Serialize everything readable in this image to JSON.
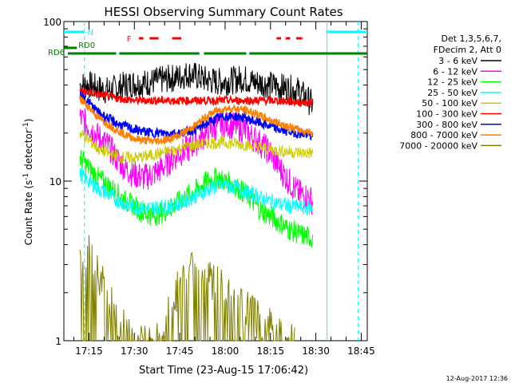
{
  "chart_data": {
    "type": "line",
    "title": "HESSI Observing Summary Count Rates",
    "xlabel": "Start Time (23-Aug-15 17:06:42)",
    "ylabel_main": "Count Rate (s",
    "ylabel_sup1": "-1",
    "ylabel_mid": " detector",
    "ylabel_sup2": "-1",
    "ylabel_end": ")",
    "ylim": [
      1,
      100
    ],
    "yscale": "log",
    "xlim_minutes": [
      1026.7,
      1127.0
    ],
    "x_ticks": [
      {
        "label": "17:15",
        "minutes": 1035
      },
      {
        "label": "17:30",
        "minutes": 1050
      },
      {
        "label": "17:45",
        "minutes": 1065
      },
      {
        "label": "18:00",
        "minutes": 1080
      },
      {
        "label": "18:15",
        "minutes": 1095
      },
      {
        "label": "18:30",
        "minutes": 1110
      },
      {
        "label": "18:45",
        "minutes": 1125
      }
    ],
    "y_ticks": [
      {
        "label": "1",
        "value": 1
      },
      {
        "label": "10",
        "value": 10
      },
      {
        "label": "100",
        "value": 100
      }
    ],
    "legend_header": [
      "Det 1,3,5,6,7,",
      "FDecim 2, Att 0"
    ],
    "legend_position": "right",
    "series": [
      {
        "name": "3 - 6 keV",
        "color": "#000000",
        "x": [
          1032,
          1035,
          1038,
          1041,
          1044,
          1047,
          1050,
          1053,
          1056,
          1059,
          1062,
          1065,
          1068,
          1071,
          1074,
          1077,
          1080,
          1083,
          1086,
          1089,
          1092,
          1095,
          1098,
          1101,
          1104,
          1107,
          1109
        ],
        "y": [
          40,
          40,
          38,
          37,
          38,
          40,
          41,
          41,
          42,
          43,
          44,
          45,
          47,
          45,
          43,
          42,
          42,
          43,
          44,
          42,
          41,
          40,
          39,
          38,
          37,
          33,
          30
        ]
      },
      {
        "name": "6 - 12 keV",
        "color": "#ff00ff",
        "x": [
          1032,
          1035,
          1038,
          1041,
          1044,
          1047,
          1050,
          1053,
          1056,
          1059,
          1062,
          1065,
          1068,
          1071,
          1074,
          1077,
          1080,
          1083,
          1086,
          1089,
          1092,
          1095,
          1098,
          1101,
          1104,
          1107,
          1109
        ],
        "y": [
          25,
          22,
          19,
          17,
          14,
          12,
          11,
          10.5,
          11,
          12,
          13.5,
          15,
          16,
          18,
          20,
          22,
          23,
          22,
          21,
          19,
          17,
          15,
          12,
          10,
          8.5,
          8,
          7.5
        ]
      },
      {
        "name": "12 - 25 keV",
        "color": "#00ff00",
        "x": [
          1032,
          1035,
          1038,
          1041,
          1044,
          1047,
          1050,
          1053,
          1056,
          1059,
          1062,
          1065,
          1068,
          1071,
          1074,
          1077,
          1080,
          1083,
          1086,
          1089,
          1092,
          1095,
          1098,
          1101,
          1104,
          1107,
          1109
        ],
        "y": [
          14,
          12,
          10.5,
          9.5,
          8.5,
          7.5,
          7,
          6.3,
          6.1,
          6.3,
          6.8,
          7.5,
          8.2,
          9,
          10,
          10.5,
          10,
          9.5,
          8.5,
          7.5,
          6.5,
          6,
          5.5,
          5,
          4.7,
          4.5,
          4.4
        ]
      },
      {
        "name": "25 - 50 keV",
        "color": "#00ffff",
        "x": [
          1032,
          1035,
          1038,
          1041,
          1044,
          1047,
          1050,
          1053,
          1056,
          1059,
          1062,
          1065,
          1068,
          1071,
          1074,
          1077,
          1080,
          1083,
          1086,
          1089,
          1092,
          1095,
          1098,
          1101,
          1104,
          1107,
          1109
        ],
        "y": [
          11,
          10,
          9,
          8.3,
          7.7,
          7.2,
          6.9,
          6.8,
          6.8,
          6.9,
          7,
          7.3,
          7.7,
          8.2,
          8.8,
          9.3,
          9.5,
          9.2,
          8.8,
          8.3,
          7.8,
          7.5,
          7.2,
          7,
          6.9,
          6.8,
          6.7
        ]
      },
      {
        "name": "50 - 100 keV",
        "color": "#cccc00",
        "x": [
          1032,
          1035,
          1038,
          1041,
          1044,
          1047,
          1050,
          1053,
          1056,
          1059,
          1062,
          1065,
          1068,
          1071,
          1074,
          1077,
          1080,
          1083,
          1086,
          1089,
          1092,
          1095,
          1098,
          1101,
          1104,
          1107,
          1109
        ],
        "y": [
          20,
          18,
          16,
          15,
          14.3,
          14,
          14,
          14.2,
          14.6,
          15,
          15.5,
          16,
          16.5,
          17,
          17.3,
          17.4,
          17.4,
          17.2,
          17,
          16.6,
          16.2,
          15.8,
          15.5,
          15.3,
          15.1,
          15,
          15
        ]
      },
      {
        "name": "100 - 300 keV",
        "color": "#ff0000",
        "x": [
          1032,
          1035,
          1038,
          1041,
          1044,
          1047,
          1050,
          1053,
          1056,
          1059,
          1062,
          1065,
          1068,
          1071,
          1074,
          1077,
          1080,
          1083,
          1086,
          1089,
          1092,
          1095,
          1098,
          1101,
          1104,
          1107,
          1109
        ],
        "y": [
          37,
          36,
          35,
          34,
          33,
          32.5,
          32,
          32,
          32,
          32,
          32,
          32,
          32,
          32,
          32,
          32,
          32,
          32,
          32,
          32,
          32,
          32,
          31.8,
          31.5,
          31.2,
          31,
          31
        ]
      },
      {
        "name": "300 - 800 keV",
        "color": "#0000ff",
        "x": [
          1032,
          1035,
          1038,
          1041,
          1044,
          1047,
          1050,
          1053,
          1056,
          1059,
          1062,
          1065,
          1068,
          1071,
          1074,
          1077,
          1080,
          1083,
          1086,
          1089,
          1092,
          1095,
          1098,
          1101,
          1104,
          1107,
          1109
        ],
        "y": [
          35,
          31,
          27,
          25,
          23,
          22,
          21,
          20.5,
          20,
          20,
          20,
          20,
          20.5,
          21.5,
          23,
          24.5,
          25.5,
          25.5,
          25,
          24,
          23,
          22,
          21,
          20.5,
          20,
          19.5,
          19
        ]
      },
      {
        "name": "800 - 7000 keV",
        "color": "#ff8000",
        "x": [
          1032,
          1035,
          1038,
          1041,
          1044,
          1047,
          1050,
          1053,
          1056,
          1059,
          1062,
          1065,
          1068,
          1071,
          1074,
          1077,
          1080,
          1083,
          1086,
          1089,
          1092,
          1095,
          1098,
          1101,
          1104,
          1107,
          1109
        ],
        "y": [
          33,
          29,
          25,
          23,
          21,
          19.5,
          18.5,
          18,
          17.8,
          18,
          18.5,
          19.5,
          21,
          23,
          25.5,
          27.5,
          28.5,
          28.5,
          28,
          27,
          25.5,
          24,
          23,
          22,
          21,
          20.5,
          20
        ]
      },
      {
        "name": "7000 - 20000 keV",
        "color": "#808000",
        "x": [
          1032,
          1033,
          1035,
          1036,
          1038,
          1040,
          1042,
          1044,
          1045,
          1047,
          1050,
          1052,
          1060,
          1061,
          1063,
          1065,
          1067,
          1069,
          1071,
          1073,
          1075,
          1077,
          1079,
          1081,
          1083,
          1085,
          1087,
          1089,
          1091,
          1093,
          1095,
          1097,
          1099,
          1101,
          1103
        ],
        "y": [
          3.5,
          3.0,
          3.8,
          3.2,
          2.7,
          2.2,
          1.8,
          1.5,
          1.3,
          1.2,
          1.1,
          1.0,
          1.0,
          1.5,
          1.9,
          2.2,
          2.5,
          2.8,
          3.0,
          2.8,
          2.6,
          2.4,
          2.2,
          2.0,
          1.8,
          1.7,
          1.6,
          1.5,
          1.4,
          1.3,
          1.3,
          1.2,
          1.1,
          1.0,
          1.0
        ]
      }
    ],
    "top_panel": {
      "labels": [
        {
          "text": "N",
          "color": "#00ffff"
        },
        {
          "text": "F",
          "color": "#ff0000"
        },
        {
          "text": "RD0",
          "color": "#008000"
        },
        {
          "text": "RD6",
          "color": "#008000"
        }
      ],
      "night_intervals_minutes": [
        [
          1026.7,
          1033.5
        ],
        [
          1113.7,
          1127.0
        ]
      ],
      "flare_intervals_minutes": [
        [
          1051.5,
          1053.0
        ],
        [
          1055.0,
          1058.0
        ],
        [
          1062.5,
          1065.5
        ],
        [
          1097.0,
          1098.5
        ],
        [
          1100.0,
          1101.5
        ],
        [
          1103.5,
          1105.5
        ]
      ],
      "rd0_intervals_minutes": [
        [
          1026.7,
          1031.0
        ]
      ],
      "rd6_intervals_minutes": [
        [
          1028.0,
          1044.0
        ],
        [
          1045.0,
          1071.5
        ],
        [
          1073.0,
          1087.0
        ],
        [
          1088.0,
          1127.0
        ]
      ]
    },
    "vertical_lines_minutes": [
      {
        "minutes": 1033.5,
        "color": "#00ffff",
        "style": "dashed"
      },
      {
        "minutes": 1113.7,
        "color": "#00ffff",
        "style": "solid"
      },
      {
        "minutes": 1124.0,
        "color": "#00ffff",
        "style": "dashed"
      }
    ],
    "footer_date": "12-Aug-2017 12:36"
  }
}
